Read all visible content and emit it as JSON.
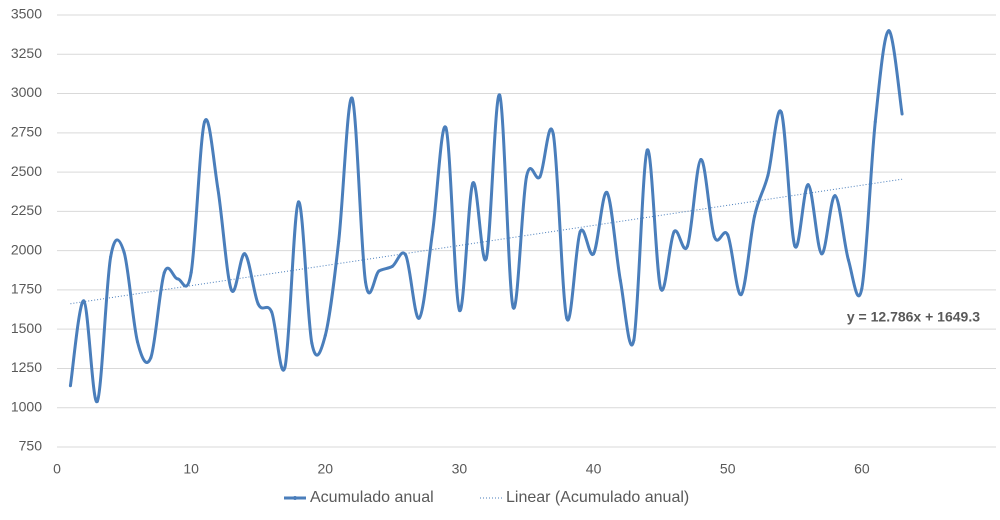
{
  "chart_data": {
    "type": "line",
    "x": [
      1,
      2,
      3,
      4,
      5,
      6,
      7,
      8,
      9,
      10,
      11,
      12,
      13,
      14,
      15,
      16,
      17,
      18,
      19,
      20,
      21,
      22,
      23,
      24,
      25,
      26,
      27,
      28,
      29,
      30,
      31,
      32,
      33,
      34,
      35,
      36,
      37,
      38,
      39,
      40,
      41,
      42,
      43,
      44,
      45,
      46,
      47,
      48,
      49,
      50,
      51,
      52,
      53,
      54,
      55,
      56,
      57,
      58,
      59,
      60,
      61,
      62,
      63
    ],
    "series": [
      {
        "name": "Acumulado anual",
        "color": "#4a7ebb",
        "values": [
          1140,
          1680,
          1040,
          1960,
          1990,
          1420,
          1320,
          1860,
          1820,
          1860,
          2820,
          2390,
          1750,
          1980,
          1660,
          1610,
          1260,
          2310,
          1410,
          1460,
          2060,
          2970,
          1800,
          1870,
          1900,
          1970,
          1570,
          2120,
          2780,
          1620,
          2430,
          1950,
          2990,
          1640,
          2470,
          2470,
          2740,
          1570,
          2120,
          1980,
          2370,
          1810,
          1430,
          2640,
          1760,
          2120,
          2030,
          2580,
          2090,
          2100,
          1720,
          2220,
          2480,
          2880,
          2030,
          2420,
          1980,
          2350,
          1940,
          1760,
          2820,
          3400,
          2870
        ]
      }
    ],
    "trendline": {
      "name": "Linear (Acumulado anual)",
      "slope": 12.786,
      "intercept": 1649.3,
      "label": "y = 12.786x + 1649.3",
      "color": "#4a7ebb"
    },
    "xlim": [
      0,
      70
    ],
    "xticks": [
      0,
      10,
      20,
      30,
      40,
      50,
      60
    ],
    "ylim": [
      750,
      3500
    ],
    "yticks": [
      750,
      1000,
      1250,
      1500,
      1750,
      2000,
      2250,
      2500,
      2750,
      3000,
      3250,
      3500
    ],
    "grid": true,
    "legend": "bottom"
  }
}
